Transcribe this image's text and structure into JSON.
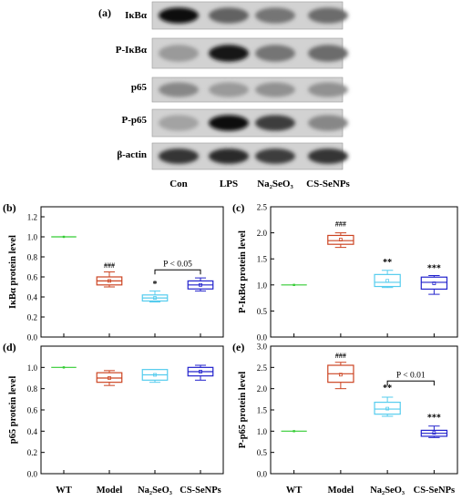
{
  "blot": {
    "panel_label": "(a)",
    "rows": [
      "IκBα",
      "P-IκBα",
      "p65",
      "P-p65",
      "β-actin"
    ],
    "lanes": [
      "Con",
      "LPS",
      "Na₂SeO₃",
      "CS-SeNPs"
    ]
  },
  "chart_data": [
    {
      "id": "b",
      "type": "box",
      "panel_label": "(b)",
      "title": "",
      "xlabel": "",
      "ylabel": "IκBα protein level",
      "ylim": [
        0,
        1.3
      ],
      "yticks": [
        0.0,
        0.2,
        0.4,
        0.6,
        0.8,
        1.0,
        1.2
      ],
      "categories": [
        "WT",
        "Model",
        "Na₂SeO₃",
        "CS-SeNPs"
      ],
      "show_xticklabels": false,
      "colors": [
        "#33cc33",
        "#cc4422",
        "#55ccee",
        "#2222cc"
      ],
      "boxes": [
        {
          "min": 1.0,
          "q1": 1.0,
          "median": 1.0,
          "q3": 1.0,
          "max": 1.0,
          "mean": 1.0
        },
        {
          "min": 0.5,
          "q1": 0.52,
          "median": 0.56,
          "q3": 0.6,
          "max": 0.65,
          "mean": 0.56
        },
        {
          "min": 0.35,
          "q1": 0.36,
          "median": 0.39,
          "q3": 0.42,
          "max": 0.46,
          "mean": 0.39
        },
        {
          "min": 0.46,
          "q1": 0.48,
          "median": 0.52,
          "q3": 0.56,
          "max": 0.59,
          "mean": 0.52
        }
      ],
      "annotations": [
        {
          "category": 1,
          "text": "###",
          "y": 0.69
        },
        {
          "category": 2,
          "text": "*",
          "y": 0.5
        }
      ],
      "brackets": [
        {
          "from": 2,
          "to": 3,
          "y": 0.67,
          "text": "P < 0.05"
        }
      ]
    },
    {
      "id": "c",
      "type": "box",
      "panel_label": "(c)",
      "title": "",
      "xlabel": "",
      "ylabel": "P-IκBα protein level",
      "ylim": [
        0,
        2.5
      ],
      "yticks": [
        0.0,
        0.5,
        1.0,
        1.5,
        2.0,
        2.5
      ],
      "categories": [
        "WT",
        "Model",
        "Na₂SeO₃",
        "CS-SeNPs"
      ],
      "show_xticklabels": false,
      "colors": [
        "#33cc33",
        "#cc4422",
        "#55ccee",
        "#2222cc"
      ],
      "boxes": [
        {
          "min": 1.0,
          "q1": 1.0,
          "median": 1.0,
          "q3": 1.0,
          "max": 1.0,
          "mean": 1.0
        },
        {
          "min": 1.72,
          "q1": 1.78,
          "median": 1.85,
          "q3": 1.95,
          "max": 2.0,
          "mean": 1.87
        },
        {
          "min": 0.95,
          "q1": 0.97,
          "median": 1.05,
          "q3": 1.2,
          "max": 1.28,
          "mean": 1.08
        },
        {
          "min": 0.82,
          "q1": 0.92,
          "median": 1.05,
          "q3": 1.15,
          "max": 1.18,
          "mean": 1.03
        }
      ],
      "annotations": [
        {
          "category": 1,
          "text": "###",
          "y": 2.12
        },
        {
          "category": 2,
          "text": "**",
          "y": 1.38
        },
        {
          "category": 3,
          "text": "***",
          "y": 1.27
        }
      ],
      "brackets": []
    },
    {
      "id": "d",
      "type": "box",
      "panel_label": "(d)",
      "title": "",
      "xlabel": "",
      "ylabel": "p65 protein level",
      "ylim": [
        0,
        1.2
      ],
      "yticks": [
        0.0,
        0.2,
        0.4,
        0.6,
        0.8,
        1.0
      ],
      "categories": [
        "WT",
        "Model",
        "Na₂SeO₃",
        "CS-SeNPs"
      ],
      "show_xticklabels": true,
      "colors": [
        "#33cc33",
        "#cc4422",
        "#55ccee",
        "#2222cc"
      ],
      "boxes": [
        {
          "min": 1.0,
          "q1": 1.0,
          "median": 1.0,
          "q3": 1.0,
          "max": 1.0,
          "mean": 1.0
        },
        {
          "min": 0.83,
          "q1": 0.86,
          "median": 0.9,
          "q3": 0.95,
          "max": 0.97,
          "mean": 0.9
        },
        {
          "min": 0.86,
          "q1": 0.88,
          "median": 0.93,
          "q3": 0.98,
          "max": 0.98,
          "mean": 0.93
        },
        {
          "min": 0.88,
          "q1": 0.92,
          "median": 0.96,
          "q3": 1.0,
          "max": 1.02,
          "mean": 0.96
        }
      ],
      "annotations": [],
      "brackets": []
    },
    {
      "id": "e",
      "type": "box",
      "panel_label": "(e)",
      "title": "",
      "xlabel": "",
      "ylabel": "P-p65 protein level",
      "ylim": [
        0,
        3.0
      ],
      "yticks": [
        0.0,
        0.5,
        1.0,
        1.5,
        2.0,
        2.5,
        3.0
      ],
      "categories": [
        "WT",
        "Model",
        "Na₂SeO₃",
        "CS-SeNPs"
      ],
      "show_xticklabels": true,
      "colors": [
        "#33cc33",
        "#cc4422",
        "#55ccee",
        "#2222cc"
      ],
      "boxes": [
        {
          "min": 1.0,
          "q1": 1.0,
          "median": 1.0,
          "q3": 1.0,
          "max": 1.0,
          "mean": 1.0
        },
        {
          "min": 2.0,
          "q1": 2.15,
          "median": 2.35,
          "q3": 2.55,
          "max": 2.62,
          "mean": 2.33
        },
        {
          "min": 1.35,
          "q1": 1.4,
          "median": 1.52,
          "q3": 1.68,
          "max": 1.8,
          "mean": 1.53
        },
        {
          "min": 0.85,
          "q1": 0.88,
          "median": 0.95,
          "q3": 1.02,
          "max": 1.12,
          "mean": 0.96
        }
      ],
      "annotations": [
        {
          "category": 1,
          "text": "###",
          "y": 2.72
        },
        {
          "category": 2,
          "text": "**",
          "y": 1.95
        },
        {
          "category": 3,
          "text": "***",
          "y": 1.25
        }
      ],
      "brackets": [
        {
          "from": 2,
          "to": 3,
          "y": 2.18,
          "text": "P < 0.01"
        }
      ]
    }
  ]
}
